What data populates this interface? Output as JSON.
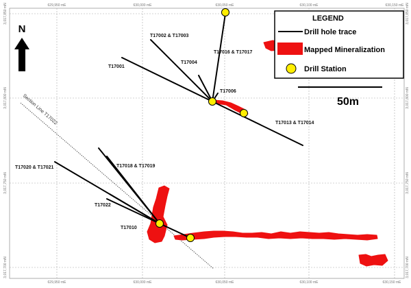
{
  "colors": {
    "trace": "#000000",
    "mineralization": "#ee1111",
    "station": "#ffee00",
    "grid": "#9a9a9a"
  },
  "grid": {
    "easting_labels": [
      "629,950 mE",
      "630,000 mE",
      "630,050 mE",
      "630,100 mE",
      "630,150 mE"
    ],
    "northing_labels": [
      "3,017,850 mN",
      "3,017,800 mN",
      "3,017,750 mN",
      "3,017,700 mN"
    ]
  },
  "north_arrow": {
    "label": "N"
  },
  "scale_bar": {
    "label": "50m"
  },
  "legend": {
    "title": "LEGEND",
    "drill_hole_trace": "Drill hole trace",
    "mapped_mineralization": "Mapped Mineralization",
    "drill_station": "Drill Station"
  },
  "section_line": {
    "label": "Section Line T17022"
  },
  "hole_labels": {
    "t17002_t17003": "T17002 & T17003",
    "t17001": "T17001",
    "t17004": "T17004",
    "t17016_t17017": "T17016 & T17017",
    "t17006": "T17006",
    "t17013_t17014": "T17013 & T17014",
    "t17020_t17021": "T17020 & T17021",
    "t17018_t17019": "T17018 & T17019",
    "t17022": "T17022",
    "t17010": "T17010"
  }
}
